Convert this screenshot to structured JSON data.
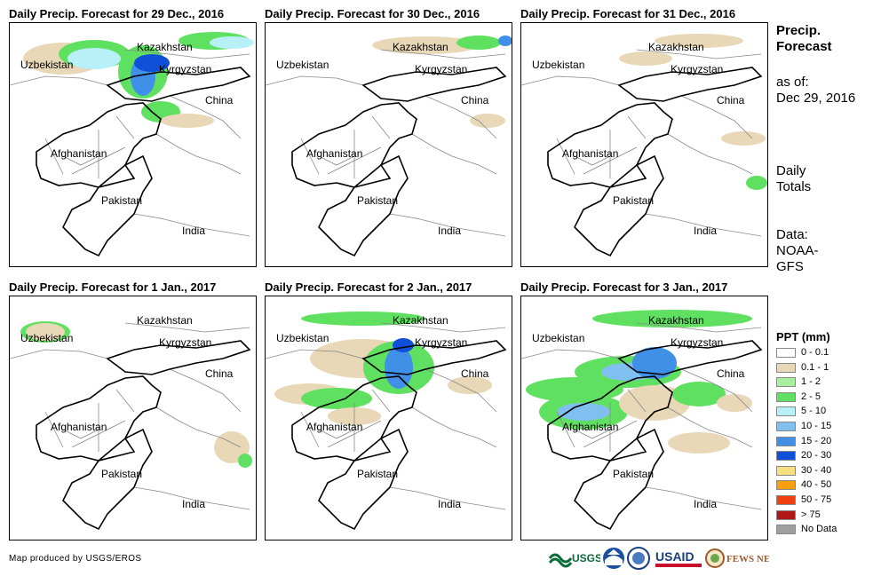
{
  "panels": [
    {
      "title": "Daily Precip. Forecast for 29 Dec., 2016"
    },
    {
      "title": "Daily Precip. Forecast for 30 Dec., 2016"
    },
    {
      "title": "Daily Precip. Forecast for 31 Dec., 2016"
    },
    {
      "title": "Daily Precip. Forecast for 1 Jan., 2017"
    },
    {
      "title": "Daily Precip. Forecast for 2 Jan., 2017"
    },
    {
      "title": "Daily Precip. Forecast for 3 Jan., 2017"
    }
  ],
  "map_labels": {
    "kazakhstan": "Kazakhstan",
    "uzbekistan": "Uzbekistan",
    "kyrgyzstan": "Kyrgyzstan",
    "china": "China",
    "afghanistan": "Afghanistan",
    "pakistan": "Pakistan",
    "india": "India"
  },
  "side": {
    "title_line1": "Precip.",
    "title_line2": "Forecast",
    "asof_line1": "as of:",
    "asof_line2": "Dec 29, 2016",
    "daily_line1": "Daily",
    "daily_line2": "Totals",
    "data_line1": "Data:",
    "data_line2": "NOAA-",
    "data_line3": "GFS"
  },
  "legend": {
    "title": "PPT (mm)",
    "items": [
      {
        "label": "0 - 0.1",
        "color": "#ffffff"
      },
      {
        "label": "0.1 - 1",
        "color": "#e8d8b8"
      },
      {
        "label": "1 - 2",
        "color": "#a8f0a0"
      },
      {
        "label": "2 - 5",
        "color": "#60e060"
      },
      {
        "label": "5 - 10",
        "color": "#b8f0f8"
      },
      {
        "label": "10 - 15",
        "color": "#80c0f0"
      },
      {
        "label": "15 - 20",
        "color": "#4090e8"
      },
      {
        "label": "20 - 30",
        "color": "#1050d8"
      },
      {
        "label": "30 - 40",
        "color": "#f8e080"
      },
      {
        "label": "40 - 50",
        "color": "#f8a010"
      },
      {
        "label": "50 - 75",
        "color": "#f04010"
      },
      {
        "label": "> 75",
        "color": "#b01818"
      },
      {
        "label": "No Data",
        "color": "#a0a0a0"
      }
    ]
  },
  "footer": "Map produced by USGS/EROS",
  "logos": {
    "usgs": "USGS",
    "usaid": "USAID",
    "fewsnet": "FEWS NET"
  }
}
